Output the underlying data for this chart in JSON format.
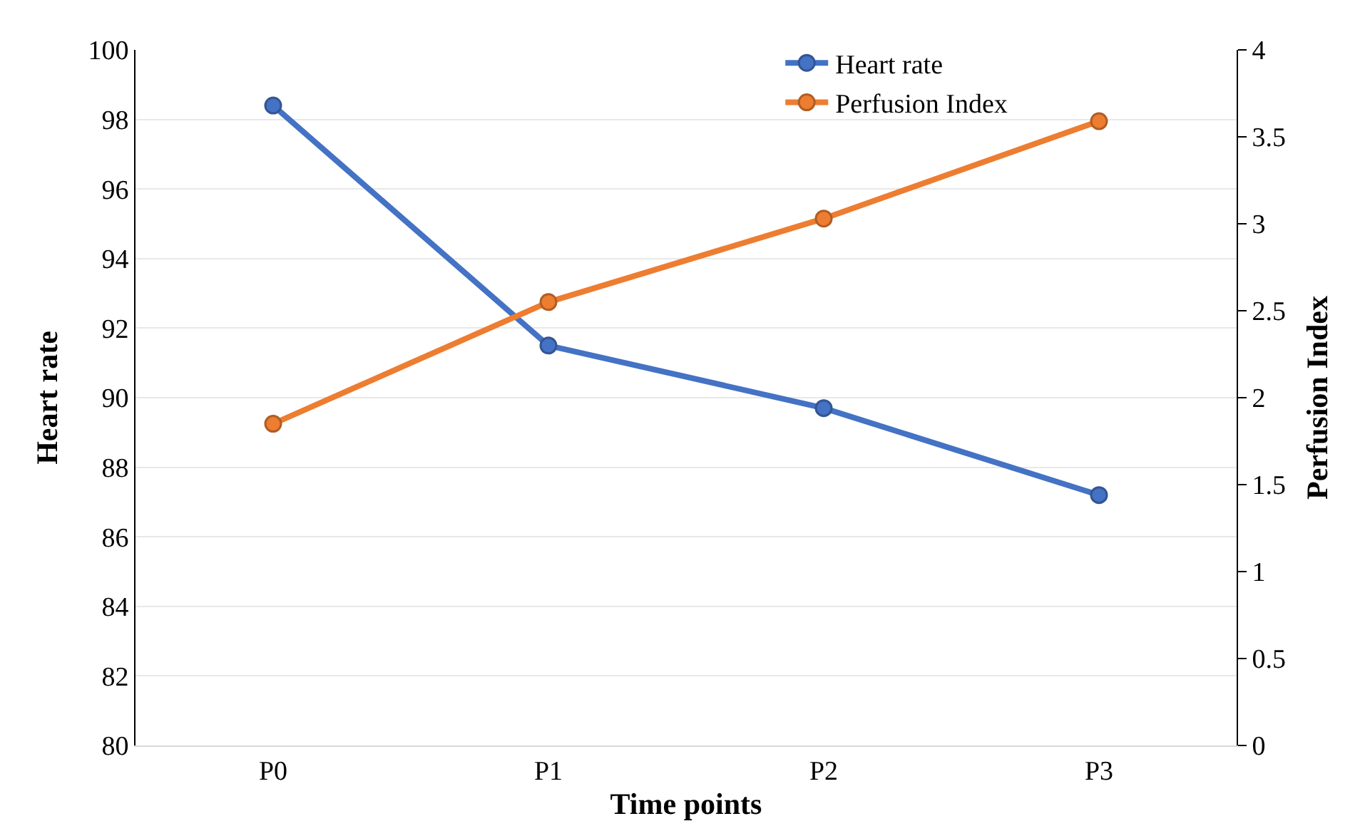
{
  "chart_data": {
    "type": "line",
    "xlabel": "Time points",
    "ylabel": "Heart rate",
    "y2label": "Perfusion Index",
    "categories": [
      "P0",
      "P1",
      "P2",
      "P3"
    ],
    "series": [
      {
        "name": "Heart rate",
        "color": "#4472c4",
        "values": [
          98.4,
          91.5,
          89.7,
          87.2
        ]
      },
      {
        "name": "Perfusion Index",
        "color": "#ed7d31",
        "axis": "y2",
        "values": [
          1.85,
          2.55,
          3.03,
          3.59
        ]
      }
    ],
    "ylim": [
      80,
      100
    ],
    "yticks": [
      80,
      82,
      84,
      86,
      88,
      90,
      92,
      94,
      96,
      98,
      100
    ],
    "y2lim": [
      0,
      4
    ],
    "y2ticks": [
      0,
      0.5,
      1,
      1.5,
      2,
      2.5,
      3,
      3.5,
      4
    ],
    "grid": "y",
    "legend": "top right",
    "marker": "circle",
    "line_style": "solid"
  }
}
